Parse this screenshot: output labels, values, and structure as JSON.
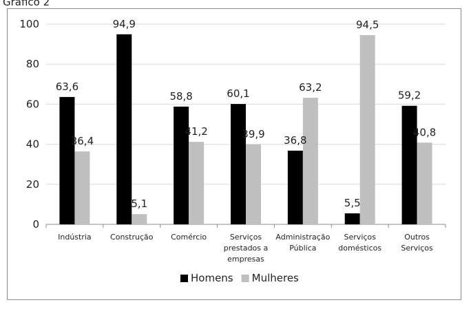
{
  "caption": "Gráfico 2",
  "chart_data": {
    "type": "bar",
    "categories": [
      [
        "Indústria"
      ],
      [
        "Construção"
      ],
      [
        "Comércio"
      ],
      [
        "Serviços",
        "prestados a",
        "empresas"
      ],
      [
        "Administração",
        "Pública"
      ],
      [
        "Serviços",
        "domésticos"
      ],
      [
        "Outros",
        "Serviços"
      ]
    ],
    "series": [
      {
        "name": "Homens",
        "color": "#000000",
        "values": [
          63.6,
          94.9,
          58.8,
          60.1,
          36.8,
          5.5,
          59.2
        ],
        "labels": [
          "63,6",
          "94,9",
          "58,8",
          "60,1",
          "36,8",
          "5,5",
          "59,2"
        ]
      },
      {
        "name": "Mulheres",
        "color": "#bfbfbf",
        "values": [
          36.4,
          5.1,
          41.2,
          39.9,
          63.2,
          94.5,
          40.8
        ],
        "labels": [
          "36,4",
          "5,1",
          "41,2",
          "39,9",
          "63,2",
          "94,5",
          "40,8"
        ]
      }
    ],
    "ylim": [
      0,
      100
    ],
    "yticks": [
      0,
      20,
      40,
      60,
      80,
      100
    ],
    "grid": true,
    "legend": "bottom"
  }
}
